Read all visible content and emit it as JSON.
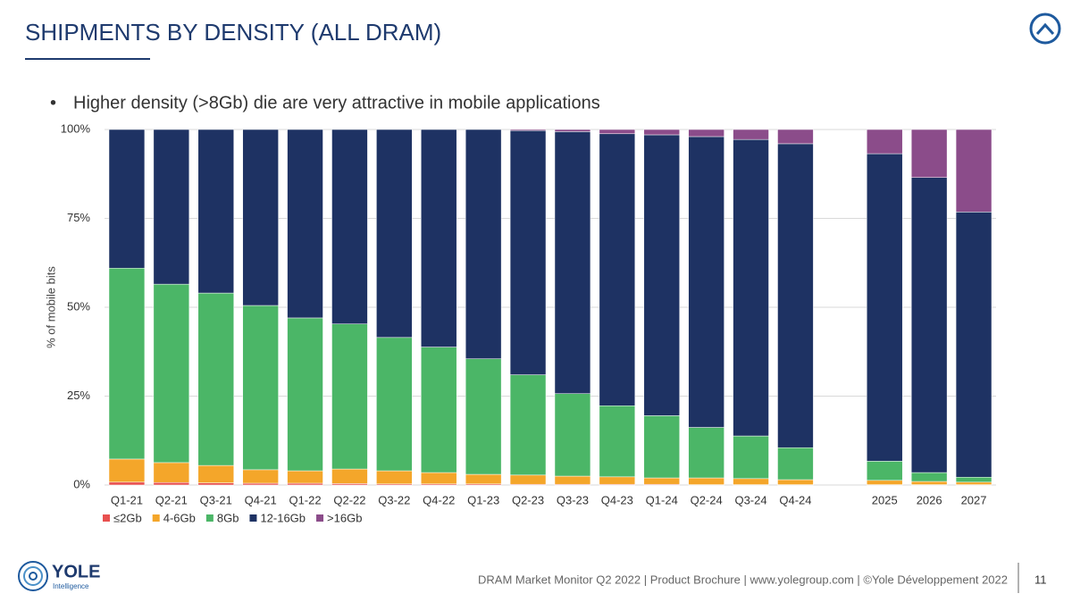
{
  "slide": {
    "title": "SHIPMENTS BY DENSITY (ALL DRAM)",
    "bullet": "Higher density (>8Gb) die are very attractive in mobile applications",
    "footer": "DRAM Market Monitor Q2 2022 | Product Brochure | www.yolegroup.com | ©Yole Développement 2022",
    "page_number": "11",
    "logo": "YOLE",
    "logo_subtitle": "Intelligence"
  },
  "chart_data": {
    "type": "stacked_bar",
    "y_label": "% of mobile bits",
    "categories": [
      "Q1-21",
      "Q2-21",
      "Q3-21",
      "Q4-21",
      "Q1-22",
      "Q2-22",
      "Q3-22",
      "Q4-22",
      "Q1-23",
      "Q2-23",
      "Q3-23",
      "Q4-23",
      "Q1-24",
      "Q2-24",
      "Q3-24",
      "Q4-24",
      null,
      "2025",
      "2026",
      "2027"
    ],
    "series": [
      {
        "name": "≤2Gb",
        "color": "#e8504f",
        "values": [
          0.8,
          0.7,
          0.6,
          0.5,
          0.5,
          0.4,
          0.3,
          0.3,
          0.3,
          0.2,
          0.2,
          0.2,
          0.2,
          0.1,
          0.1,
          0.1,
          null,
          0.1,
          0.1,
          0.1
        ]
      },
      {
        "name": "4-6Gb",
        "color": "#f4a62a",
        "values": [
          6.5,
          5.6,
          4.9,
          3.8,
          3.5,
          4.1,
          3.7,
          3.2,
          2.7,
          2.6,
          2.3,
          2.1,
          1.8,
          1.9,
          1.7,
          1.4,
          null,
          1.2,
          0.9,
          0.7
        ]
      },
      {
        "name": "8Gb",
        "color": "#4bb667",
        "values": [
          53.7,
          50.2,
          48.5,
          46.2,
          43,
          40.8,
          37.5,
          35.3,
          32.5,
          28.2,
          23.2,
          20,
          17.5,
          14.2,
          12,
          9,
          null,
          5.4,
          2.5,
          1.4
        ]
      },
      {
        "name": "12-16Gb",
        "color": "#1e3263",
        "values": [
          39,
          43.5,
          46,
          49.5,
          53,
          54.7,
          58.5,
          61.2,
          64.5,
          68.7,
          73.7,
          76.5,
          79,
          81.8,
          83.4,
          85.5,
          null,
          86.5,
          83,
          74.6
        ]
      },
      {
        "name": ">16Gb",
        "color": "#8b4c8a",
        "values": [
          0,
          0,
          0,
          0,
          0,
          0,
          0,
          0,
          0,
          0.3,
          0.6,
          1.2,
          1.5,
          2,
          2.8,
          4,
          null,
          6.8,
          13.5,
          23.2
        ]
      }
    ],
    "ylim": [
      0,
      100
    ],
    "yticks": [
      {
        "value": 0,
        "label": "0%"
      },
      {
        "value": 25,
        "label": "25%"
      },
      {
        "value": 50,
        "label": "50%"
      },
      {
        "value": 75,
        "label": "75%"
      },
      {
        "value": 100,
        "label": "100%"
      }
    ],
    "grid": true,
    "legend": "bottom-left"
  }
}
